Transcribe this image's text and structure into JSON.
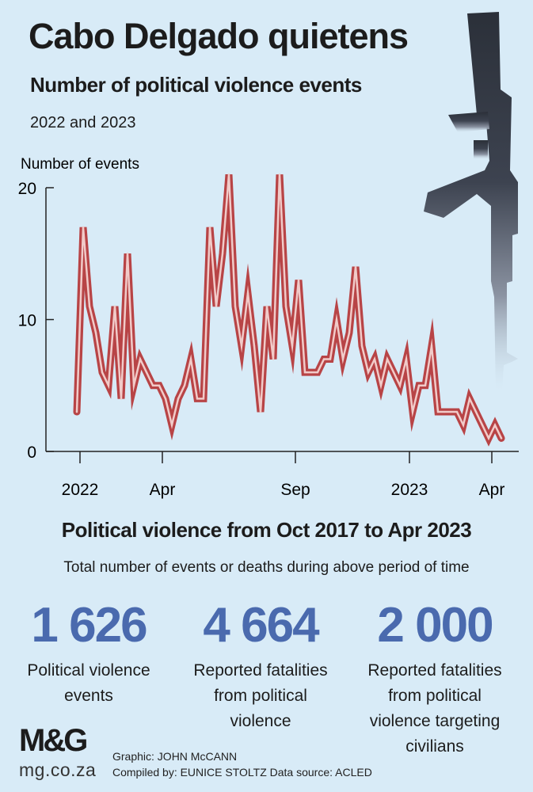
{
  "header": {
    "title": "Cabo Delgado quietens",
    "subtitle": "Number of political violence events",
    "period": "2022 and 2023"
  },
  "chart_data": {
    "type": "line",
    "ylabel": "Number of events",
    "ylim": [
      0,
      21.5
    ],
    "y_ticks": [
      0,
      10,
      20
    ],
    "x_tick_labels": [
      "2022",
      "Apr",
      "Sep",
      "2023",
      "Apr"
    ],
    "x_ticks_weeks": [
      0.5,
      13.5,
      34.5,
      52.5,
      65.5
    ],
    "grid": false,
    "line_color": "#b84446",
    "series": [
      {
        "name": "",
        "x_weeks": [
          0,
          1,
          2,
          3,
          4,
          5,
          6,
          7,
          8,
          9,
          10,
          11,
          12,
          13,
          14,
          15,
          16,
          17,
          18,
          19,
          20,
          21,
          22,
          23,
          24,
          25,
          26,
          27,
          28,
          29,
          30,
          31,
          32,
          33,
          34,
          35,
          36,
          37,
          38,
          39,
          40,
          41,
          42,
          43,
          44,
          45,
          46,
          47,
          48,
          49,
          50,
          51,
          52,
          53,
          54,
          55,
          56,
          57,
          58,
          59,
          60,
          61,
          62,
          63,
          64,
          65,
          66,
          67
        ],
        "values": [
          3,
          17,
          11,
          9,
          6,
          5,
          11,
          4,
          15,
          5,
          7,
          6,
          5,
          5,
          4,
          2,
          4,
          5,
          7,
          4,
          4,
          17,
          11,
          15,
          21,
          11,
          8,
          12,
          8,
          3,
          11,
          7,
          21,
          11,
          8,
          13,
          6,
          6,
          6,
          7,
          7,
          10,
          7,
          9,
          14,
          8,
          6,
          7,
          5,
          7,
          6,
          5,
          7,
          3,
          5,
          5,
          8,
          3,
          3,
          3,
          3,
          2,
          4,
          3,
          2,
          1,
          2,
          1
        ]
      }
    ]
  },
  "summary": {
    "title": "Political violence from Oct 2017 to Apr 2023",
    "subtitle": "Total number of events or deaths during above period of time",
    "stats": [
      {
        "value": "1 626",
        "label_lines": [
          "Political violence",
          "events"
        ]
      },
      {
        "value": "4 664",
        "label_lines": [
          "Reported fatalities",
          "from political",
          "violence"
        ]
      },
      {
        "value": "2 000",
        "label_lines": [
          "Reported fatalities",
          "from political",
          "violence targeting",
          "civilians"
        ]
      }
    ]
  },
  "footer": {
    "logo": "M&G",
    "site": "mg.co.za",
    "graphic_credit": "Graphic: JOHN McCANN",
    "compiled_credit": "Compiled by: EUNICE STOLTZ  Data source: ACLED"
  },
  "colors": {
    "background": "#d8ebf7",
    "stat_blue": "#4a6aae",
    "line_red": "#b84446",
    "line_highlight": "#f1cbc9"
  },
  "illustration": "rifle-icon"
}
